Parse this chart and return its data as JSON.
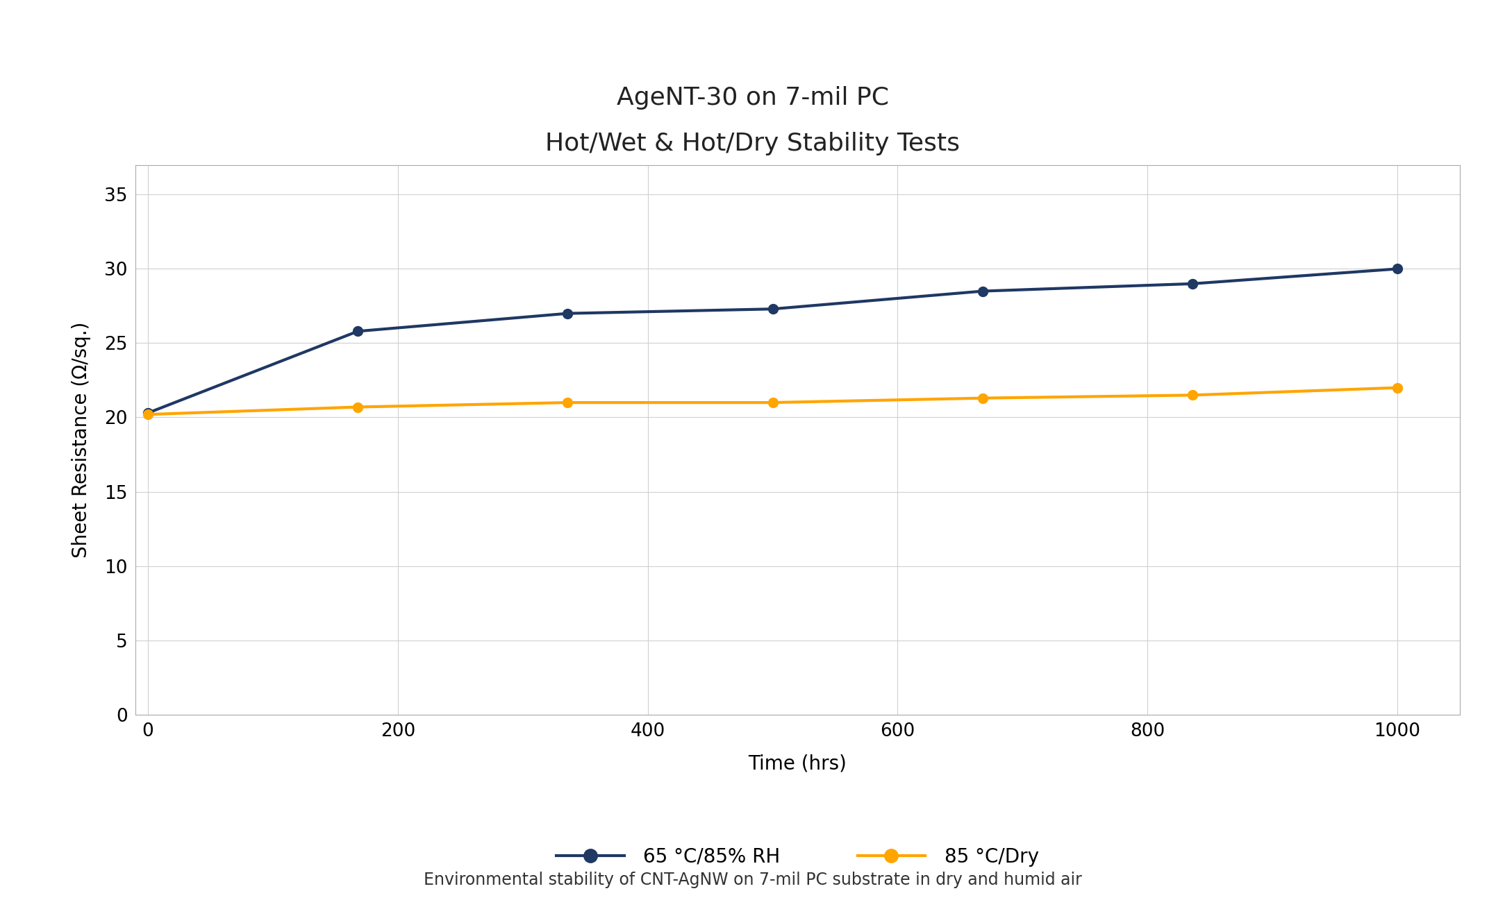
{
  "title_line1": "AgeNT-30 on 7-mil PC",
  "title_line2": "Hot/Wet & Hot/Dry Stability Tests",
  "xlabel": "Time (hrs)",
  "ylabel": "Sheet Resistance (Ω/sq.)",
  "caption": "Environmental stability of CNT-AgNW on 7-mil PC substrate in dry and humid air",
  "xlim": [
    -10,
    1050
  ],
  "ylim": [
    0,
    37
  ],
  "xticks": [
    0,
    200,
    400,
    600,
    800,
    1000
  ],
  "yticks": [
    0,
    5,
    10,
    15,
    20,
    25,
    30,
    35
  ],
  "series": [
    {
      "label": "65 °C/85% RH",
      "color": "#1f3864",
      "marker": "o",
      "linewidth": 3.0,
      "markersize": 10,
      "x": [
        0,
        168,
        336,
        500,
        668,
        836,
        1000
      ],
      "y": [
        20.3,
        25.8,
        27.0,
        27.3,
        28.5,
        29.0,
        30.0
      ]
    },
    {
      "label": "85 °C/Dry",
      "color": "#FFA500",
      "marker": "o",
      "linewidth": 3.0,
      "markersize": 10,
      "x": [
        0,
        168,
        336,
        500,
        668,
        836,
        1000
      ],
      "y": [
        20.2,
        20.7,
        21.0,
        21.0,
        21.3,
        21.5,
        22.0
      ]
    }
  ],
  "background_color": "#ffffff",
  "plot_bg_color": "#ffffff",
  "grid_color": "#d0d0d0",
  "title_fontsize": 26,
  "axis_label_fontsize": 20,
  "tick_fontsize": 19,
  "legend_fontsize": 20,
  "caption_fontsize": 17
}
